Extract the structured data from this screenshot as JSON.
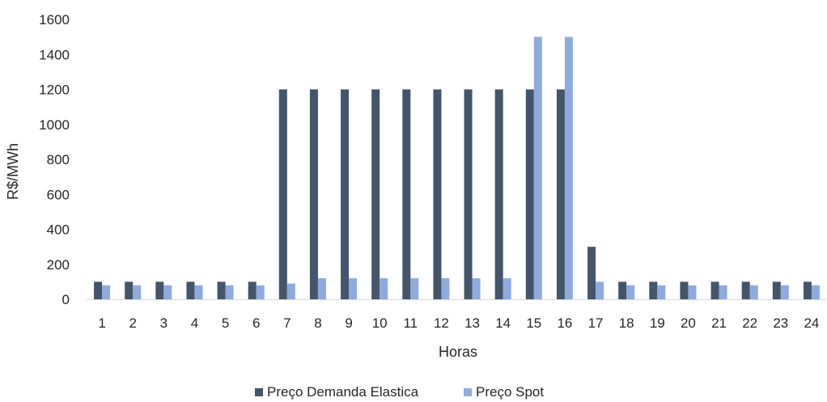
{
  "chart_data": {
    "type": "bar",
    "title": "",
    "xlabel": "Horas",
    "ylabel": "R$/MWh",
    "ylim": [
      0,
      1600
    ],
    "yticks": [
      0,
      200,
      400,
      600,
      800,
      1000,
      1200,
      1400,
      1600
    ],
    "grid": false,
    "legend_position": "bottom",
    "categories": [
      "1",
      "2",
      "3",
      "4",
      "5",
      "6",
      "7",
      "8",
      "9",
      "10",
      "11",
      "12",
      "13",
      "14",
      "15",
      "16",
      "17",
      "18",
      "19",
      "20",
      "21",
      "22",
      "23",
      "24"
    ],
    "series": [
      {
        "name": "Preço Demanda Elastica",
        "color": "#44546a",
        "values": [
          100,
          100,
          100,
          100,
          100,
          100,
          1200,
          1200,
          1200,
          1200,
          1200,
          1200,
          1200,
          1200,
          1200,
          1200,
          300,
          100,
          100,
          100,
          100,
          100,
          100,
          100
        ]
      },
      {
        "name": "Preço Spot",
        "color": "#8faadc",
        "values": [
          80,
          80,
          80,
          80,
          80,
          80,
          90,
          120,
          120,
          120,
          120,
          120,
          120,
          120,
          1500,
          1500,
          100,
          80,
          80,
          80,
          80,
          80,
          80,
          80
        ]
      }
    ]
  }
}
